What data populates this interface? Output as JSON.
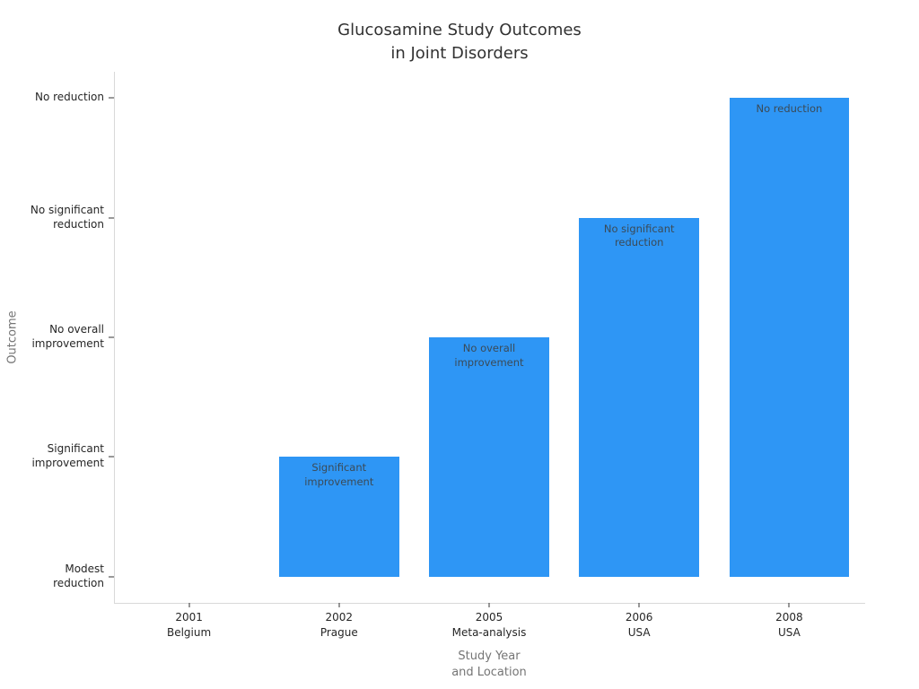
{
  "chart_data": {
    "type": "bar",
    "title": "Glucosamine Study Outcomes\nin Joint Disorders",
    "xlabel": "Study Year\nand Location",
    "ylabel": "Outcome",
    "categories": [
      "2001\nBelgium",
      "2002\nPrague",
      "2005\nMeta-analysis",
      "2006\nUSA",
      "2008\nUSA"
    ],
    "values": [
      0,
      1,
      2,
      3,
      4
    ],
    "y_tick_labels": [
      "Modest\nreduction",
      "Significant\nimprovement",
      "No overall\nimprovement",
      "No significant\nreduction",
      "No reduction"
    ],
    "bar_labels": [
      "",
      "Significant\nimprovement",
      "No overall\nimprovement",
      "No significant\nreduction",
      "No reduction"
    ],
    "study_outcomes": [
      {
        "study": "2001 Belgium",
        "outcome": "Modest reduction"
      },
      {
        "study": "2002 Prague",
        "outcome": "Significant improvement"
      },
      {
        "study": "2005 Meta-analysis",
        "outcome": "No overall improvement"
      },
      {
        "study": "2006 USA",
        "outcome": "No significant reduction"
      },
      {
        "study": "2008 USA",
        "outcome": "No reduction"
      }
    ],
    "ylim": [
      -0.22,
      4.22
    ],
    "bar_color": "#2E96F5",
    "bar_width_fraction": 0.8,
    "grid": false,
    "legend": false
  }
}
